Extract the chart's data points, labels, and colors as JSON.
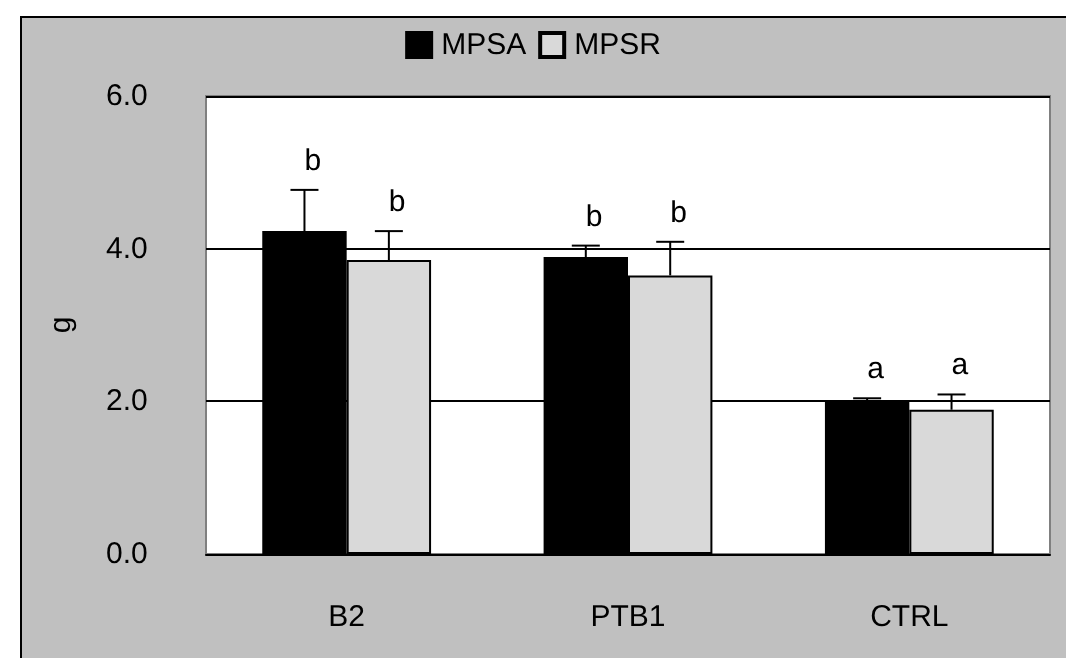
{
  "chart_data": {
    "type": "bar",
    "ylabel": "g",
    "categories": [
      "B2",
      "PTB1",
      "CTRL"
    ],
    "series": [
      {
        "name": "MPSA",
        "color": "#000000",
        "values": [
          4.23,
          3.89,
          1.99
        ],
        "errors": [
          0.54,
          0.15,
          0.05
        ],
        "value_labels": [
          "b",
          "b",
          "a"
        ]
      },
      {
        "name": "MPSR",
        "color": "#d9d9d9",
        "values": [
          3.85,
          3.65,
          1.89
        ],
        "errors": [
          0.38,
          0.44,
          0.2
        ],
        "value_labels": [
          "b",
          "b",
          "a"
        ]
      }
    ],
    "ylim": [
      0,
      6
    ],
    "yticks": [
      {
        "value": 0,
        "label": "0.0"
      },
      {
        "value": 2,
        "label": "2.0"
      },
      {
        "value": 4,
        "label": "4.0"
      },
      {
        "value": 6,
        "label": "6.0"
      }
    ],
    "grid": "y",
    "legend": "top"
  }
}
